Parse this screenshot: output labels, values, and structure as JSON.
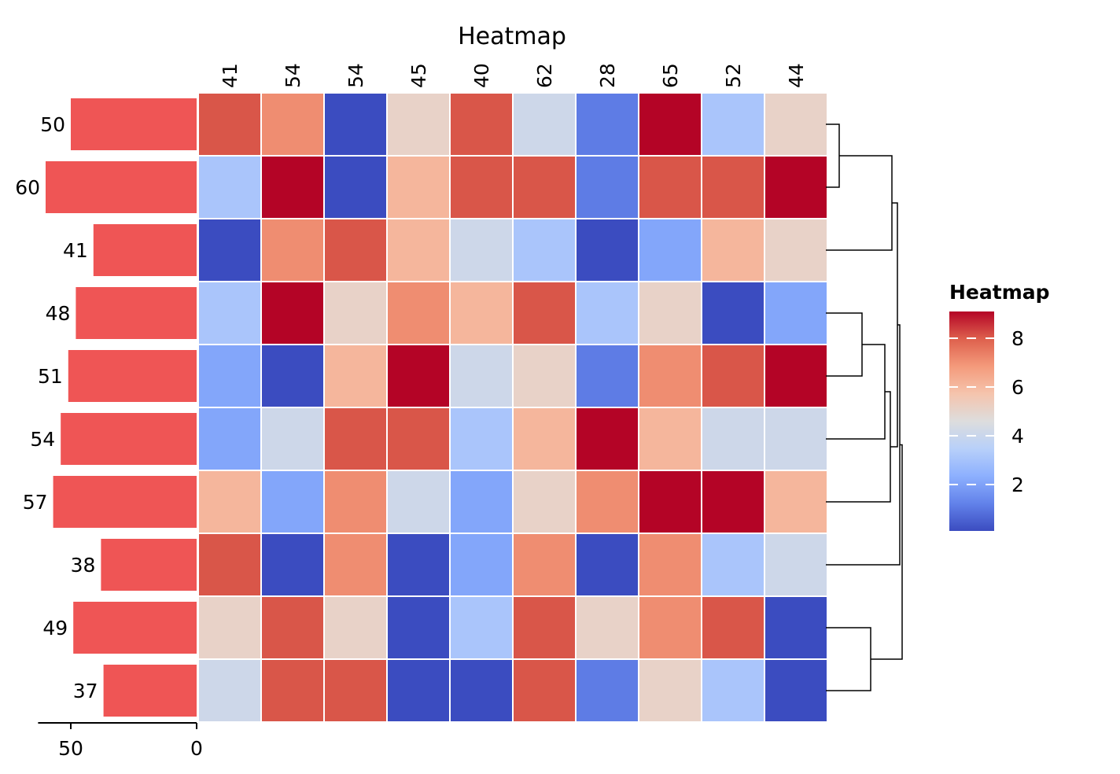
{
  "chart_data": {
    "type": "heatmap",
    "title": "Heatmap",
    "column_labels": [
      "41",
      "54",
      "54",
      "45",
      "40",
      "62",
      "28",
      "65",
      "52",
      "44"
    ],
    "row_labels": [
      "50",
      "60",
      "41",
      "48",
      "51",
      "54",
      "57",
      "38",
      "49",
      "37"
    ],
    "values": [
      [
        8,
        7,
        0,
        5,
        8,
        4,
        1,
        9,
        3,
        5
      ],
      [
        3,
        9,
        0,
        6,
        8,
        8,
        1,
        8,
        8,
        9
      ],
      [
        0,
        7,
        8,
        6,
        4,
        3,
        0,
        2,
        6,
        5
      ],
      [
        3,
        9,
        5,
        7,
        6,
        8,
        3,
        5,
        0,
        2
      ],
      [
        2,
        0,
        6,
        9,
        4,
        5,
        1,
        7,
        8,
        9
      ],
      [
        2,
        4,
        8,
        8,
        3,
        6,
        9,
        6,
        4,
        4
      ],
      [
        6,
        2,
        7,
        4,
        2,
        5,
        7,
        9,
        9,
        6
      ],
      [
        8,
        0,
        7,
        0,
        2,
        7,
        0,
        7,
        3,
        4
      ],
      [
        5,
        8,
        5,
        0,
        3,
        8,
        5,
        7,
        8,
        0
      ],
      [
        4,
        8,
        8,
        0,
        0,
        8,
        1,
        5,
        3,
        0
      ]
    ],
    "row_bar": {
      "values": [
        50,
        60,
        41,
        48,
        51,
        54,
        57,
        38,
        49,
        37
      ],
      "axis_ticks": [
        "50",
        "0"
      ],
      "xlim": [
        0,
        63
      ],
      "color": "#ef5555"
    },
    "colorbar": {
      "title": "Heatmap",
      "ticks": [
        "8",
        "6",
        "4",
        "2"
      ],
      "range": [
        0,
        9
      ],
      "colormap": "coolwarm"
    },
    "dendrogram": {
      "side": "right",
      "leaf_order": [
        "50",
        "60",
        "41",
        "48",
        "51",
        "54",
        "57",
        "38",
        "49",
        "37"
      ]
    }
  }
}
